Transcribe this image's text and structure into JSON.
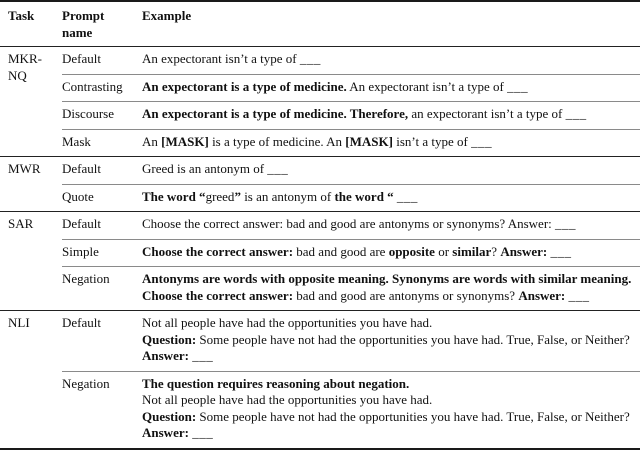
{
  "table": {
    "header": {
      "task": "Task",
      "prompt": "Prompt name",
      "example": "Example"
    },
    "groups": [
      {
        "task": "MKR-NQ",
        "rows": [
          {
            "prompt": "Default",
            "example": [
              [
                {
                  "t": "An expectorant isn’t a type of "
                },
                {
                  "t": "___",
                  "blank": true
                }
              ]
            ]
          },
          {
            "prompt": "Contrasting",
            "example": [
              [
                {
                  "t": "An expectorant is a type of medicine.",
                  "b": true
                },
                {
                  "t": " An expectorant isn’t a type of "
                },
                {
                  "t": "___",
                  "blank": true
                }
              ]
            ]
          },
          {
            "prompt": "Discourse",
            "example": [
              [
                {
                  "t": "An expectorant is a type of medicine. Therefore,",
                  "b": true
                },
                {
                  "t": " an expectorant isn’t a type of "
                },
                {
                  "t": "___",
                  "blank": true
                }
              ]
            ]
          },
          {
            "prompt": "Mask",
            "example": [
              [
                {
                  "t": "An "
                },
                {
                  "t": "[MASK]",
                  "b": true
                },
                {
                  "t": " is a type of medicine. An "
                },
                {
                  "t": "[MASK]",
                  "b": true
                },
                {
                  "t": " isn’t a type of "
                },
                {
                  "t": "___",
                  "blank": true
                }
              ]
            ]
          }
        ]
      },
      {
        "task": "MWR",
        "rows": [
          {
            "prompt": "Default",
            "example": [
              [
                {
                  "t": "Greed is an antonym of "
                },
                {
                  "t": "___",
                  "blank": true
                }
              ]
            ]
          },
          {
            "prompt": "Quote",
            "example": [
              [
                {
                  "t": "The word “",
                  "b": true
                },
                {
                  "t": "greed"
                },
                {
                  "t": "”",
                  "b": true
                },
                {
                  "t": " is an antonym of "
                },
                {
                  "t": "the word “",
                  "b": true
                },
                {
                  "t": " "
                },
                {
                  "t": "___",
                  "blank": true
                }
              ]
            ]
          }
        ]
      },
      {
        "task": "SAR",
        "rows": [
          {
            "prompt": "Default",
            "example": [
              [
                {
                  "t": "Choose the correct answer: bad and good are antonyms or synonyms? Answer: "
                },
                {
                  "t": "___",
                  "blank": true
                }
              ]
            ]
          },
          {
            "prompt": "Simple",
            "example": [
              [
                {
                  "t": "Choose the correct answer:",
                  "b": true
                },
                {
                  "t": " bad and good are "
                },
                {
                  "t": "opposite",
                  "b": true
                },
                {
                  "t": " or "
                },
                {
                  "t": "similar",
                  "b": true
                },
                {
                  "t": "? "
                },
                {
                  "t": "Answer:",
                  "b": true
                },
                {
                  "t": " "
                },
                {
                  "t": "___",
                  "blank": true
                }
              ]
            ]
          },
          {
            "prompt": "Negation",
            "example": [
              [
                {
                  "t": "Antonyms are words with opposite meaning. Synonyms are words with similar meaning. Choose the correct answer:",
                  "b": true
                },
                {
                  "t": " bad and good are antonyms or synonyms? "
                },
                {
                  "t": "Answer:",
                  "b": true
                },
                {
                  "t": " "
                },
                {
                  "t": "___",
                  "blank": true
                }
              ]
            ]
          }
        ]
      },
      {
        "task": "NLI",
        "rows": [
          {
            "prompt": "Default",
            "example": [
              [
                {
                  "t": "Not all people have had the opportunities you have had."
                }
              ],
              [
                {
                  "t": "Question:",
                  "b": true
                },
                {
                  "t": " Some people have not had the opportunities you have had. True, False, or Neither?"
                }
              ],
              [
                {
                  "t": "Answer:",
                  "b": true
                },
                {
                  "t": " "
                },
                {
                  "t": "___",
                  "blank": true
                }
              ]
            ]
          },
          {
            "prompt": "Negation",
            "example": [
              [
                {
                  "t": "The question requires reasoning about negation.",
                  "b": true
                }
              ],
              [
                {
                  "t": "Not all people have had the opportunities you have had."
                }
              ],
              [
                {
                  "t": "Question:",
                  "b": true
                },
                {
                  "t": " Some people have not had the opportunities you have had. True, False, or Neither?"
                }
              ],
              [
                {
                  "t": "Answer:",
                  "b": true
                },
                {
                  "t": " "
                },
                {
                  "t": "___",
                  "blank": true
                }
              ]
            ]
          }
        ]
      }
    ]
  }
}
